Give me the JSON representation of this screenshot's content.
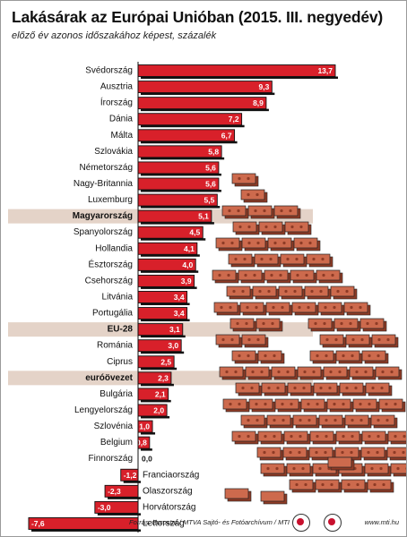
{
  "title": "Lakásárak az Európai Unióban (2015. III. negyedév)",
  "subtitle": "előző év azonos időszakához képest, százalék",
  "source": "Forrás: Eurostat / MTVA Sajtó- és Fotóarchívum / MTI",
  "website": "www.mti.hu",
  "colors": {
    "bar": "#d8202a",
    "highlight_band": "#e4d3c8",
    "brick": "#cd6a4d",
    "brick_dark": "#8e3b26"
  },
  "chart_data": {
    "type": "bar",
    "orientation": "horizontal",
    "title": "Lakásárak az Európai Unióban (2015. III. negyedév)",
    "subtitle": "előző év azonos időszakához képest, százalék",
    "xlim": [
      -7.6,
      13.7
    ],
    "grid": false,
    "highlighted": [
      "Magyarország",
      "EU-28",
      "euróövezet"
    ],
    "categories": [
      "Svédország",
      "Ausztria",
      "Írország",
      "Dánia",
      "Málta",
      "Szlovákia",
      "Németország",
      "Nagy-Britannia",
      "Luxemburg",
      "Magyarország",
      "Spanyolország",
      "Hollandia",
      "Észtország",
      "Csehország",
      "Litvánia",
      "Portugália",
      "EU-28",
      "Románia",
      "Ciprus",
      "euróövezet",
      "Bulgária",
      "Lengyelország",
      "Szlovénia",
      "Belgium",
      "Finnország",
      "Franciaország",
      "Olaszország",
      "Horvátország",
      "Lettország"
    ],
    "values": [
      13.7,
      9.3,
      8.9,
      7.2,
      6.7,
      5.8,
      5.6,
      5.6,
      5.5,
      5.1,
      4.5,
      4.1,
      4.0,
      3.9,
      3.4,
      3.4,
      3.1,
      3.0,
      2.5,
      2.3,
      2.1,
      2.0,
      1.0,
      0.8,
      0.0,
      -1.2,
      -2.3,
      -3.0,
      -7.6
    ],
    "value_labels": [
      "13,7",
      "9,3",
      "8,9",
      "7,2",
      "6,7",
      "5,8",
      "5,6",
      "5,6",
      "5,5",
      "5,1",
      "4,5",
      "4,1",
      "4,0",
      "3,9",
      "3,4",
      "3,4",
      "3,1",
      "3,0",
      "2,5",
      "2,3",
      "2,1",
      "2,0",
      "1,0",
      "0,8",
      "0,0",
      "-1,2",
      "-2,3",
      "-3,0",
      "-7,6"
    ]
  }
}
